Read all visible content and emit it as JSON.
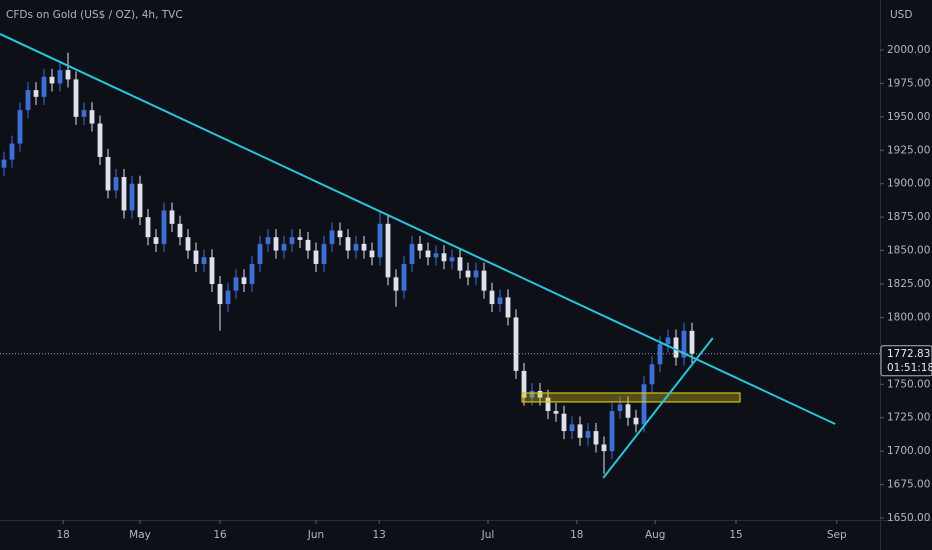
{
  "chart_data": {
    "type": "candlestick",
    "title": "CFDs on Gold (US$ / OZ), 4h, TVC",
    "y_unit": "USD",
    "background": "#0e1018",
    "up_color": "#3d6fd6",
    "down_color": "#dfe2ea",
    "candles": [
      [
        1912,
        1924,
        1906,
        1918
      ],
      [
        1918,
        1936,
        1912,
        1930
      ],
      [
        1930,
        1961,
        1924,
        1955
      ],
      [
        1955,
        1976,
        1949,
        1970
      ],
      [
        1970,
        1976,
        1959,
        1965
      ],
      [
        1965,
        1986,
        1959,
        1980
      ],
      [
        1980,
        1986,
        1969,
        1975
      ],
      [
        1975,
        1991,
        1969,
        1985
      ],
      [
        1985,
        1998,
        1972,
        1978
      ],
      [
        1978,
        1984,
        1944,
        1950
      ],
      [
        1950,
        1961,
        1944,
        1955
      ],
      [
        1955,
        1961,
        1939,
        1945
      ],
      [
        1945,
        1951,
        1914,
        1920
      ],
      [
        1920,
        1926,
        1889,
        1895
      ],
      [
        1895,
        1911,
        1889,
        1905
      ],
      [
        1905,
        1911,
        1874,
        1880
      ],
      [
        1880,
        1906,
        1874,
        1900
      ],
      [
        1900,
        1906,
        1869,
        1875
      ],
      [
        1875,
        1881,
        1854,
        1860
      ],
      [
        1860,
        1866,
        1849,
        1855
      ],
      [
        1855,
        1886,
        1849,
        1880
      ],
      [
        1880,
        1886,
        1864,
        1870
      ],
      [
        1870,
        1876,
        1854,
        1860
      ],
      [
        1860,
        1866,
        1844,
        1850
      ],
      [
        1850,
        1856,
        1834,
        1840
      ],
      [
        1840,
        1851,
        1834,
        1845
      ],
      [
        1845,
        1851,
        1819,
        1825
      ],
      [
        1825,
        1831,
        1790,
        1810
      ],
      [
        1810,
        1826,
        1804,
        1820
      ],
      [
        1820,
        1836,
        1814,
        1830
      ],
      [
        1830,
        1836,
        1819,
        1825
      ],
      [
        1825,
        1846,
        1819,
        1840
      ],
      [
        1840,
        1861,
        1834,
        1855
      ],
      [
        1855,
        1866,
        1849,
        1860
      ],
      [
        1860,
        1866,
        1844,
        1850
      ],
      [
        1850,
        1861,
        1844,
        1855
      ],
      [
        1855,
        1866,
        1849,
        1860
      ],
      [
        1860,
        1866,
        1852,
        1858
      ],
      [
        1858,
        1864,
        1844,
        1850
      ],
      [
        1850,
        1856,
        1834,
        1840
      ],
      [
        1840,
        1861,
        1834,
        1855
      ],
      [
        1855,
        1871,
        1849,
        1865
      ],
      [
        1865,
        1871,
        1854,
        1860
      ],
      [
        1860,
        1866,
        1844,
        1850
      ],
      [
        1850,
        1861,
        1844,
        1855
      ],
      [
        1855,
        1861,
        1844,
        1850
      ],
      [
        1850,
        1856,
        1839,
        1845
      ],
      [
        1845,
        1880,
        1839,
        1870
      ],
      [
        1870,
        1876,
        1824,
        1830
      ],
      [
        1830,
        1836,
        1808,
        1820
      ],
      [
        1820,
        1846,
        1814,
        1840
      ],
      [
        1840,
        1861,
        1834,
        1855
      ],
      [
        1855,
        1861,
        1844,
        1850
      ],
      [
        1850,
        1856,
        1839,
        1845
      ],
      [
        1845,
        1854,
        1839,
        1848
      ],
      [
        1848,
        1854,
        1836,
        1842
      ],
      [
        1842,
        1851,
        1836,
        1845
      ],
      [
        1845,
        1851,
        1829,
        1835
      ],
      [
        1835,
        1841,
        1824,
        1830
      ],
      [
        1830,
        1841,
        1824,
        1835
      ],
      [
        1835,
        1841,
        1814,
        1820
      ],
      [
        1820,
        1826,
        1804,
        1810
      ],
      [
        1810,
        1821,
        1804,
        1815
      ],
      [
        1815,
        1821,
        1794,
        1800
      ],
      [
        1800,
        1806,
        1754,
        1760
      ],
      [
        1760,
        1766,
        1734,
        1740
      ],
      [
        1740,
        1751,
        1734,
        1745
      ],
      [
        1745,
        1751,
        1734,
        1740
      ],
      [
        1740,
        1746,
        1724,
        1730
      ],
      [
        1730,
        1736,
        1722,
        1728
      ],
      [
        1728,
        1734,
        1709,
        1715
      ],
      [
        1715,
        1726,
        1709,
        1720
      ],
      [
        1720,
        1726,
        1704,
        1710
      ],
      [
        1710,
        1721,
        1704,
        1715
      ],
      [
        1715,
        1721,
        1699,
        1705
      ],
      [
        1705,
        1711,
        1683,
        1700
      ],
      [
        1700,
        1736,
        1694,
        1730
      ],
      [
        1730,
        1741,
        1724,
        1735
      ],
      [
        1735,
        1741,
        1719,
        1725
      ],
      [
        1725,
        1731,
        1714,
        1720
      ],
      [
        1720,
        1756,
        1714,
        1750
      ],
      [
        1750,
        1771,
        1744,
        1765
      ],
      [
        1765,
        1786,
        1759,
        1780
      ],
      [
        1780,
        1791,
        1774,
        1785
      ],
      [
        1785,
        1791,
        1764,
        1770
      ],
      [
        1770,
        1796,
        1764,
        1790
      ],
      [
        1790,
        1796,
        1766,
        1772.83
      ]
    ],
    "countdown": "01:51:18",
    "xlim": [
      -0.5,
      109.5
    ],
    "xticks": [
      {
        "value": 7.4,
        "label": "18"
      },
      {
        "value": 17,
        "label": "May"
      },
      {
        "value": 27,
        "label": "16"
      },
      {
        "value": 39,
        "label": "Jun"
      },
      {
        "value": 46.9,
        "label": "13"
      },
      {
        "value": 60.5,
        "label": "Jul"
      },
      {
        "value": 71.6,
        "label": "18"
      },
      {
        "value": 81.4,
        "label": "Aug"
      },
      {
        "value": 91.5,
        "label": "15"
      },
      {
        "value": 104.1,
        "label": "Sep"
      }
    ],
    "ylim": [
      1648.5,
      2037.4
    ],
    "yticks": [
      {
        "value": 1650,
        "label": "1650.00"
      },
      {
        "value": 1675,
        "label": "1675.00"
      },
      {
        "value": 1700,
        "label": "1700.00"
      },
      {
        "value": 1725,
        "label": "1725.00"
      },
      {
        "value": 1750,
        "label": "1750.00"
      },
      {
        "value": 1775,
        "label": "1775.00"
      },
      {
        "value": 1800,
        "label": "1800.00"
      },
      {
        "value": 1825,
        "label": "1825.00"
      },
      {
        "value": 1850,
        "label": "1850.00"
      },
      {
        "value": 1875,
        "label": "1875.00"
      },
      {
        "value": 1900,
        "label": "1900.00"
      },
      {
        "value": 1925,
        "label": "1925.00"
      },
      {
        "value": 1950,
        "label": "1950.00"
      },
      {
        "value": 1975,
        "label": "1975.00"
      },
      {
        "value": 2000,
        "label": "2000.00"
      }
    ],
    "trendline_color": "#26c6da",
    "trendlines": [
      {
        "x": [
          -0.5,
          103.9
        ],
        "y": [
          2012,
          1720.3
        ]
      },
      {
        "x": [
          74.9,
          88.6
        ],
        "y": [
          1679.9,
          1784.6
        ]
      }
    ],
    "zone": {
      "x": [
        64.75,
        92
      ],
      "y": [
        1743.5,
        1736.8
      ],
      "color": "#d4c21a"
    }
  }
}
